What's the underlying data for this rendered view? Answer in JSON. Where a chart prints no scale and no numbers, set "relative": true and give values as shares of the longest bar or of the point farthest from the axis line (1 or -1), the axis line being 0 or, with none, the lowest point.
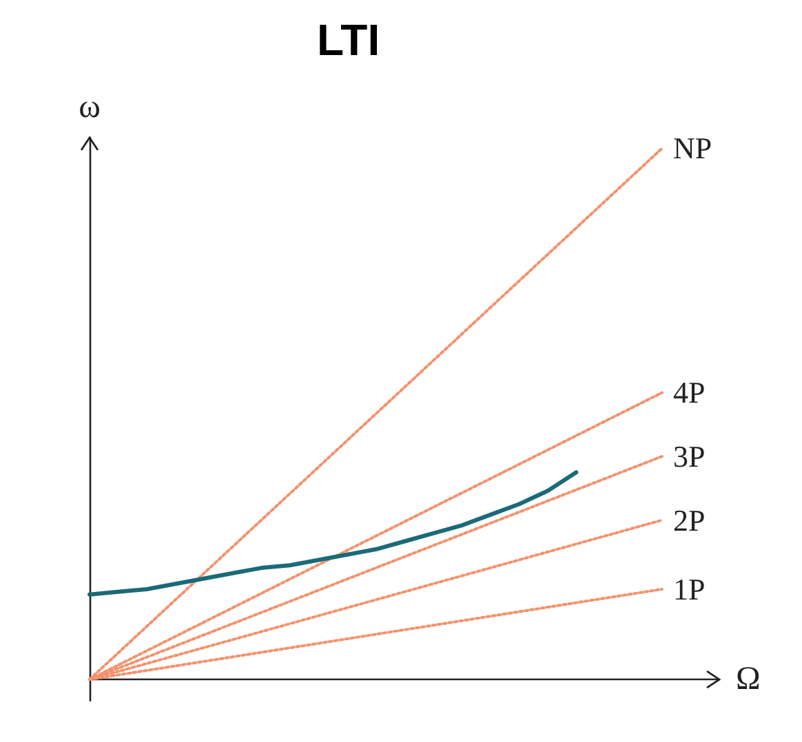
{
  "chart_data": {
    "type": "line",
    "title": "LTI",
    "xlabel": "Ω",
    "ylabel": "ω",
    "relative": true,
    "grid": false,
    "legend": false,
    "marker": "none",
    "categories": [
      null,
      null,
      null,
      null,
      null,
      null,
      null,
      null,
      null,
      null,
      null,
      null,
      null,
      null,
      null,
      null,
      null,
      null,
      null,
      null,
      null,
      null,
      null
    ],
    "series": [
      {
        "name": "NP",
        "color": "#f4916c",
        "line_style": "dotted",
        "values": [
          0,
          null,
          null,
          null,
          null,
          null,
          null,
          null,
          null,
          null,
          null,
          null,
          null,
          null,
          null,
          null,
          null,
          null,
          null,
          null,
          1,
          null,
          null
        ]
      },
      {
        "name": "4P",
        "color": "#f4916c",
        "line_style": "dotted",
        "values": [
          0,
          null,
          null,
          null,
          null,
          null,
          null,
          null,
          null,
          null,
          null,
          null,
          null,
          null,
          null,
          null,
          null,
          null,
          null,
          null,
          0.54,
          null,
          null
        ]
      },
      {
        "name": "3P",
        "color": "#f4916c",
        "line_style": "dotted",
        "values": [
          0,
          null,
          null,
          null,
          null,
          null,
          null,
          null,
          null,
          null,
          null,
          null,
          null,
          null,
          null,
          null,
          null,
          null,
          null,
          null,
          0.42,
          null,
          null
        ]
      },
      {
        "name": "2P",
        "color": "#f4916c",
        "line_style": "dotted",
        "values": [
          0,
          null,
          null,
          null,
          null,
          null,
          null,
          null,
          null,
          null,
          null,
          null,
          null,
          null,
          null,
          null,
          null,
          null,
          null,
          null,
          0.3,
          null,
          null
        ]
      },
      {
        "name": "1P",
        "color": "#f4916c",
        "line_style": "dotted",
        "values": [
          0,
          null,
          null,
          null,
          null,
          null,
          null,
          null,
          null,
          null,
          null,
          null,
          null,
          null,
          null,
          null,
          null,
          null,
          null,
          null,
          0.17,
          null,
          null
        ]
      },
      {
        "color": "#1b6a78",
        "line_style": "solid",
        "values": [
          0.16,
          0.165,
          0.17,
          0.18,
          0.19,
          0.2,
          0.21,
          0.215,
          0.225,
          0.235,
          0.245,
          0.26,
          0.275,
          0.29,
          0.31,
          0.33,
          0.355,
          0.39,
          null,
          null,
          null,
          null,
          null
        ]
      }
    ]
  }
}
